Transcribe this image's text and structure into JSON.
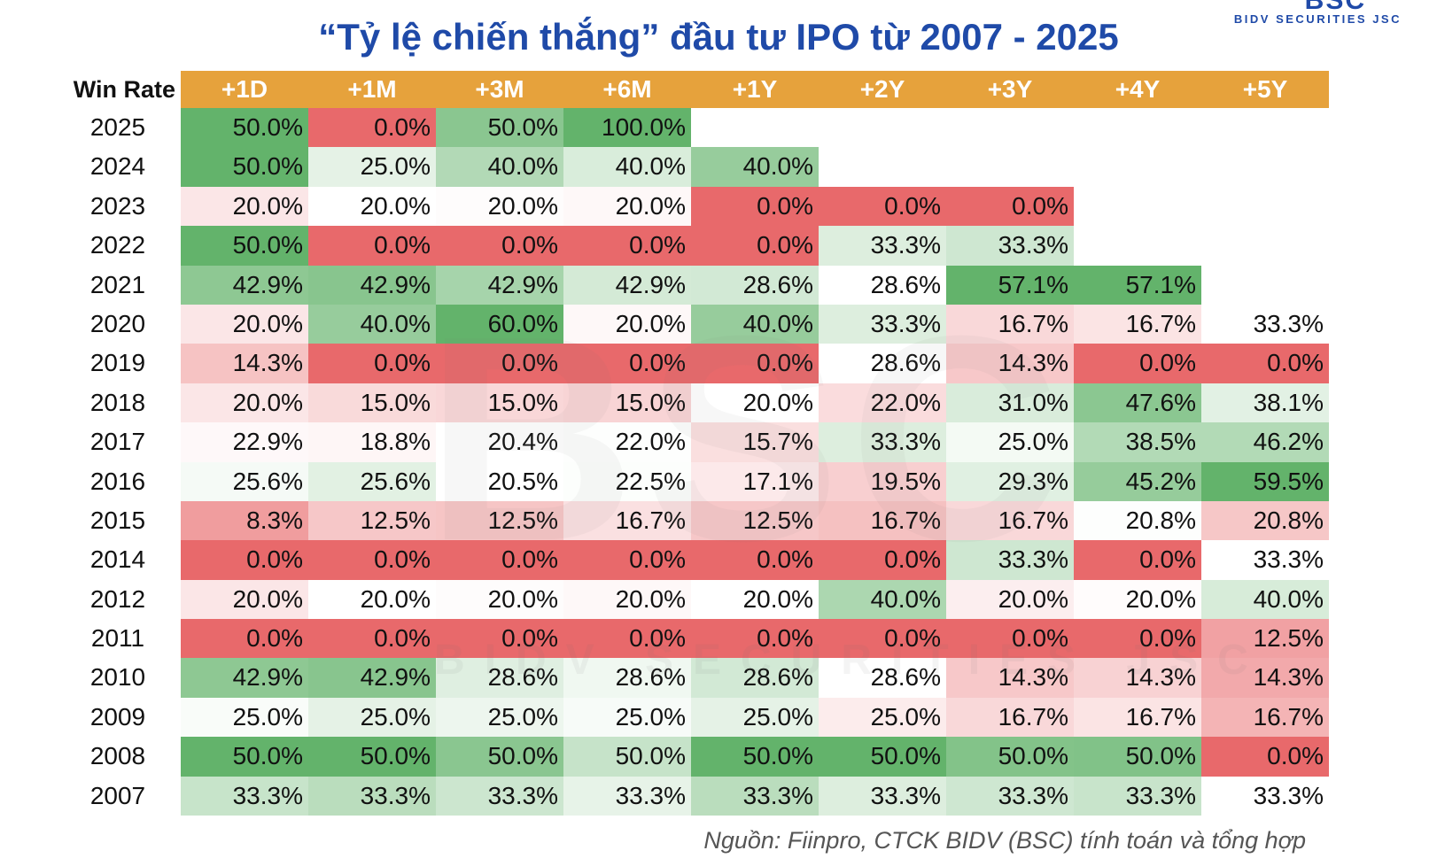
{
  "logo": {
    "mark": "BSC",
    "subtitle": "BIDV SECURITIES JSC"
  },
  "watermark": {
    "mark": "BSC",
    "subtitle": "BIDV SECURITIES JSC"
  },
  "source_note": "Nguồn: Fiinpro, CTCK BIDV (BSC) tính toán và tổng hợp",
  "colors": {
    "title": "#1f4aa8",
    "header_bg": "#e6a23c",
    "high": "#63b36b",
    "mid": "#ffffff",
    "low": "#e8696b"
  },
  "chart_data": {
    "type": "table",
    "title": "“Tỷ lệ chiến thắng” đầu tư IPO từ 2007 - 2025",
    "corner_label": "Win Rate",
    "columns": [
      "+1D",
      "+1M",
      "+3M",
      "+6M",
      "+1Y",
      "+2Y",
      "+3Y",
      "+4Y",
      "+5Y"
    ],
    "rows": [
      {
        "year": "2025",
        "values": [
          "50.0%",
          "0.0%",
          "50.0%",
          "100.0%",
          null,
          null,
          null,
          null,
          null
        ]
      },
      {
        "year": "2024",
        "values": [
          "50.0%",
          "25.0%",
          "40.0%",
          "40.0%",
          "40.0%",
          null,
          null,
          null,
          null
        ]
      },
      {
        "year": "2023",
        "values": [
          "20.0%",
          "20.0%",
          "20.0%",
          "20.0%",
          "0.0%",
          "0.0%",
          "0.0%",
          null,
          null
        ]
      },
      {
        "year": "2022",
        "values": [
          "50.0%",
          "0.0%",
          "0.0%",
          "0.0%",
          "0.0%",
          "33.3%",
          "33.3%",
          null,
          null
        ]
      },
      {
        "year": "2021",
        "values": [
          "42.9%",
          "42.9%",
          "42.9%",
          "42.9%",
          "28.6%",
          "28.6%",
          "57.1%",
          "57.1%",
          null
        ]
      },
      {
        "year": "2020",
        "values": [
          "20.0%",
          "40.0%",
          "60.0%",
          "20.0%",
          "40.0%",
          "33.3%",
          "16.7%",
          "16.7%",
          "33.3%"
        ]
      },
      {
        "year": "2019",
        "values": [
          "14.3%",
          "0.0%",
          "0.0%",
          "0.0%",
          "0.0%",
          "28.6%",
          "14.3%",
          "0.0%",
          "0.0%"
        ]
      },
      {
        "year": "2018",
        "values": [
          "20.0%",
          "15.0%",
          "15.0%",
          "15.0%",
          "20.0%",
          "22.0%",
          "31.0%",
          "47.6%",
          "38.1%"
        ]
      },
      {
        "year": "2017",
        "values": [
          "22.9%",
          "18.8%",
          "20.4%",
          "22.0%",
          "15.7%",
          "33.3%",
          "25.0%",
          "38.5%",
          "46.2%"
        ]
      },
      {
        "year": "2016",
        "values": [
          "25.6%",
          "25.6%",
          "20.5%",
          "22.5%",
          "17.1%",
          "19.5%",
          "29.3%",
          "45.2%",
          "59.5%"
        ]
      },
      {
        "year": "2015",
        "values": [
          "8.3%",
          "12.5%",
          "12.5%",
          "16.7%",
          "12.5%",
          "16.7%",
          "16.7%",
          "20.8%",
          "20.8%"
        ]
      },
      {
        "year": "2014",
        "values": [
          "0.0%",
          "0.0%",
          "0.0%",
          "0.0%",
          "0.0%",
          "0.0%",
          "33.3%",
          "0.0%",
          "33.3%"
        ]
      },
      {
        "year": "2012",
        "values": [
          "20.0%",
          "20.0%",
          "20.0%",
          "20.0%",
          "20.0%",
          "40.0%",
          "20.0%",
          "20.0%",
          "40.0%"
        ]
      },
      {
        "year": "2011",
        "values": [
          "0.0%",
          "0.0%",
          "0.0%",
          "0.0%",
          "0.0%",
          "0.0%",
          "0.0%",
          "0.0%",
          "12.5%"
        ]
      },
      {
        "year": "2010",
        "values": [
          "42.9%",
          "42.9%",
          "28.6%",
          "28.6%",
          "28.6%",
          "28.6%",
          "14.3%",
          "14.3%",
          "14.3%"
        ]
      },
      {
        "year": "2009",
        "values": [
          "25.0%",
          "25.0%",
          "25.0%",
          "25.0%",
          "25.0%",
          "25.0%",
          "16.7%",
          "16.7%",
          "16.7%"
        ]
      },
      {
        "year": "2008",
        "values": [
          "50.0%",
          "50.0%",
          "50.0%",
          "50.0%",
          "50.0%",
          "50.0%",
          "50.0%",
          "50.0%",
          "0.0%"
        ]
      },
      {
        "year": "2007",
        "values": [
          "33.3%",
          "33.3%",
          "33.3%",
          "33.3%",
          "33.3%",
          "33.3%",
          "33.3%",
          "33.3%",
          "33.3%"
        ]
      }
    ]
  }
}
